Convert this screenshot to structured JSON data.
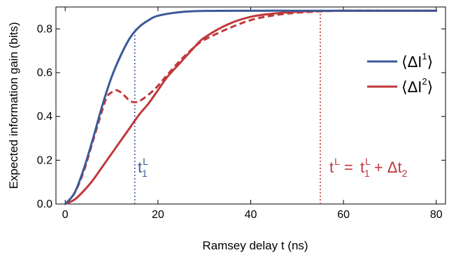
{
  "chart_data": {
    "type": "line",
    "xlabel": "Ramsey delay t  (ns)",
    "ylabel": "Expected information gain (bits)",
    "xlim": [
      -2,
      82
    ],
    "ylim": [
      0,
      0.9
    ],
    "xticks": [
      0,
      20,
      40,
      60,
      80
    ],
    "yticks": [
      0.0,
      0.2,
      0.4,
      0.6,
      0.8
    ],
    "ytick_labels": [
      "0.0",
      "0.2",
      "0.4",
      "0.6",
      "0.8"
    ],
    "grid": false,
    "legend_position": "right",
    "series": [
      {
        "name": "⟨ΔI¹⟩",
        "color": "#3b5998",
        "style": "solid",
        "x": [
          0,
          2,
          4,
          6,
          8,
          10,
          12,
          14,
          16,
          18,
          20,
          25,
          30,
          40,
          50,
          60,
          70,
          80
        ],
        "y": [
          0.0,
          0.05,
          0.16,
          0.3,
          0.45,
          0.58,
          0.68,
          0.76,
          0.81,
          0.84,
          0.86,
          0.877,
          0.882,
          0.883,
          0.883,
          0.883,
          0.883,
          0.883
        ]
      },
      {
        "name": "⟨ΔI²⟩",
        "color": "#c0393b",
        "style": "solid",
        "x": [
          0,
          2,
          4,
          6,
          8,
          10,
          12,
          14,
          16,
          18,
          20,
          22,
          25,
          28,
          30,
          35,
          40,
          45,
          50,
          55,
          60,
          70,
          80
        ],
        "y": [
          0.0,
          0.02,
          0.06,
          0.11,
          0.17,
          0.23,
          0.29,
          0.35,
          0.41,
          0.46,
          0.52,
          0.58,
          0.65,
          0.72,
          0.76,
          0.82,
          0.855,
          0.87,
          0.878,
          0.882,
          0.883,
          0.883,
          0.883
        ]
      },
      {
        "name": "",
        "color": "#c0393b",
        "style": "dashed",
        "x": [
          0,
          2,
          4,
          6,
          8,
          9,
          10,
          11,
          12,
          13,
          14,
          15,
          16,
          18,
          20,
          22,
          25,
          28,
          30,
          35,
          40,
          45,
          50,
          55,
          60,
          70,
          80
        ],
        "y": [
          0.0,
          0.05,
          0.15,
          0.29,
          0.43,
          0.49,
          0.51,
          0.52,
          0.51,
          0.49,
          0.47,
          0.465,
          0.47,
          0.5,
          0.54,
          0.59,
          0.66,
          0.72,
          0.75,
          0.8,
          0.84,
          0.862,
          0.874,
          0.88,
          0.883,
          0.883,
          0.883
        ]
      }
    ],
    "markers": [
      {
        "x": 15,
        "ymax": 0.8,
        "color": "#3b5998",
        "label_base": "t",
        "label_sup": "L",
        "label_sub": "1"
      },
      {
        "x": 55,
        "ymax": 0.883,
        "color": "#c0393b",
        "label_t": "t",
        "label_L": "L",
        "label_eq": " = ",
        "label_t1": "t",
        "label_t1_sup": "L",
        "label_t1_sub": "1",
        "label_plus": " + Δt",
        "label_plus_sub": "2"
      }
    ],
    "legend": [
      {
        "open": "⟨ΔI",
        "sup": "1",
        "close": "⟩",
        "color": "#3b5998"
      },
      {
        "open": "⟨ΔI",
        "sup": "2",
        "close": "⟩",
        "color": "#c0393b"
      }
    ]
  }
}
